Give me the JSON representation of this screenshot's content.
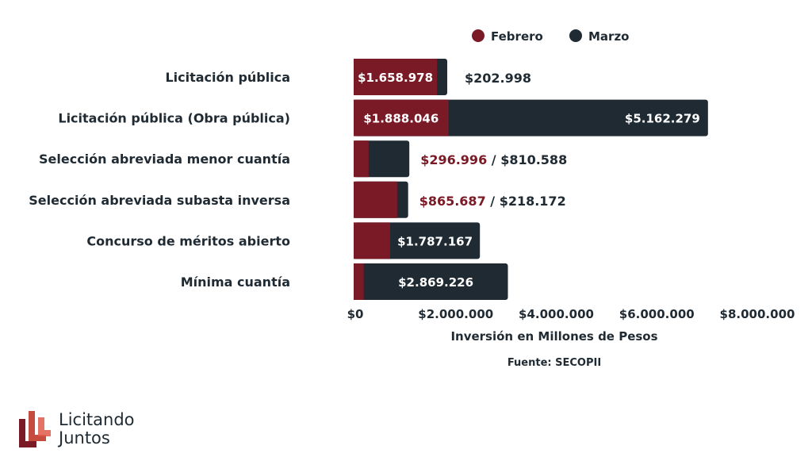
{
  "colors": {
    "febrero": "#7a1a26",
    "marzo": "#1f2a33",
    "text": "#1f2a33"
  },
  "legend": [
    "Febrero",
    "Marzo"
  ],
  "source": "Fuente: SECOPII",
  "brand": {
    "line1": "Licitando",
    "line2": "Juntos",
    "logo_icon": "licitando-juntos-logo-icon"
  },
  "chart_data": {
    "type": "bar",
    "orientation": "horizontal",
    "stacked": true,
    "categories": [
      "Licitación pública",
      "Licitación pública (Obra pública)",
      "Selección abreviada menor cuantía",
      "Selección abreviada subasta inversa",
      "Concurso de méritos abierto",
      "Mínima cuantía"
    ],
    "series": [
      {
        "name": "Febrero",
        "values": [
          1658978,
          1888046,
          296996,
          865687,
          725000,
          200000
        ]
      },
      {
        "name": "Marzo",
        "values": [
          202998,
          5162279,
          810588,
          218172,
          1787167,
          2869226
        ]
      }
    ],
    "labels": [
      {
        "feb": "$1.658.978",
        "mar": "$202.998",
        "mode": "feb-in-mar-out"
      },
      {
        "feb": "$1.888.046",
        "mar": "$5.162.279",
        "mode": "both-in"
      },
      {
        "feb": "$296.996",
        "mar": "$810.588",
        "mode": "both-out"
      },
      {
        "feb": "$865.687",
        "mar": "$218.172",
        "mode": "both-out"
      },
      {
        "feb": null,
        "mar": "$1.787.167",
        "mode": "mar-in"
      },
      {
        "feb": null,
        "mar": "$2.869.226",
        "mode": "mar-in"
      }
    ],
    "xlim": [
      0,
      8000000
    ],
    "xticks": [
      0,
      2000000,
      4000000,
      6000000,
      8000000
    ],
    "xtick_labels": [
      "$0",
      "$2.000.000",
      "$4.000.000",
      "$6.000.000",
      "$8.000.000"
    ],
    "xlabel": "Inversión en Millones de Pesos",
    "legend_position": "top-right"
  }
}
